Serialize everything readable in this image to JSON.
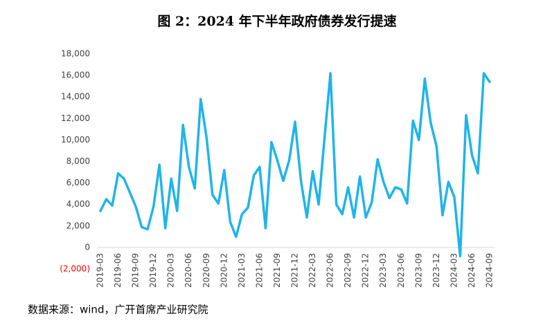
{
  "chart_data": {
    "type": "line",
    "title": "图 2：2024 年下半年政府债券发行提速",
    "source": "数据来源：wind，广开首席产业研究院",
    "categories": [
      "2019-03",
      null,
      null,
      "2019-06",
      null,
      null,
      "2019-09",
      null,
      null,
      "2019-12",
      null,
      null,
      "2020-03",
      null,
      null,
      "2020-06",
      null,
      null,
      "2020-09",
      null,
      null,
      "2020-12",
      null,
      null,
      "2021-03",
      null,
      null,
      "2021-06",
      null,
      null,
      "2021-09",
      null,
      null,
      "2021-12",
      null,
      null,
      "2022-03",
      null,
      null,
      "2022-06",
      null,
      null,
      "2022-09",
      null,
      null,
      "2022-12",
      null,
      null,
      "2023-03",
      null,
      null,
      "2023-06",
      null,
      null,
      "2023-09",
      null,
      null,
      "2023-12",
      null,
      null,
      "2024-03",
      null,
      null,
      "2024-06",
      null,
      null,
      "2024-09"
    ],
    "series": [
      {
        "color": "#1fb4ea",
        "values": [
          3400,
          4500,
          3900,
          6900,
          6400,
          5100,
          3800,
          1900,
          1700,
          3800,
          7700,
          1800,
          6400,
          3400,
          11400,
          7500,
          5500,
          13800,
          10200,
          4900,
          4100,
          7200,
          2400,
          1000,
          3100,
          3700,
          6700,
          7500,
          1800,
          9800,
          8100,
          6200,
          8100,
          11700,
          6200,
          2800,
          7100,
          4000,
          10200,
          16200,
          4000,
          3100,
          5600,
          2800,
          6600,
          2800,
          4200,
          8200,
          6100,
          4600,
          5600,
          5400,
          4100,
          11800,
          10000,
          15700,
          11600,
          9400,
          3000,
          6100,
          4700,
          -800,
          12300,
          8600,
          6900,
          16200,
          15400
        ]
      }
    ],
    "ylim": [
      -2000,
      18000
    ],
    "yticks": [
      {
        "value": -2000,
        "label": "(2,000)"
      },
      0,
      {
        "value": 2000,
        "label": "2,000"
      },
      {
        "value": 4000,
        "label": "4,000"
      },
      {
        "value": 6000,
        "label": "6,000"
      },
      {
        "value": 8000,
        "label": "8,000"
      },
      {
        "value": 10000,
        "label": "10,000"
      },
      {
        "value": 12000,
        "label": "12,000"
      },
      {
        "value": 14000,
        "label": "14,000"
      },
      {
        "value": 16000,
        "label": "16,000"
      },
      {
        "value": 18000,
        "label": "18,000"
      }
    ],
    "negative_tick_color": "#ff0000",
    "axis_color": "#d9d9d9",
    "grid": false
  }
}
